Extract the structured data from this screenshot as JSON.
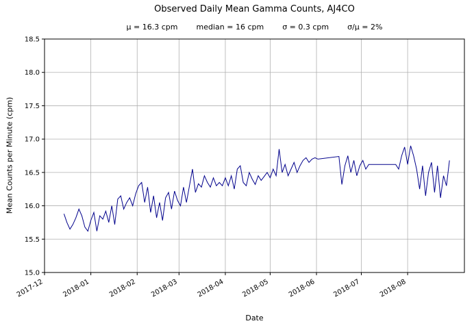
{
  "chart_data": {
    "type": "line",
    "title": "Observed Daily Mean Gamma Counts, AJ4CO",
    "stats": [
      "μ = 16.3 cpm",
      "median = 16 cpm",
      "σ = 0.3 cpm",
      "σ/μ = 2%"
    ],
    "xlabel": "Date",
    "ylabel": "Mean Counts per Minute (cpm)",
    "line_color": "#00008b",
    "grid": true,
    "legend": "none",
    "ylim": [
      15.0,
      18.5
    ],
    "xlim": [
      "2017-12-01",
      "2018-09-08"
    ],
    "yticks": [
      "15.0",
      "15.5",
      "16.0",
      "16.5",
      "17.0",
      "17.5",
      "18.0",
      "18.5"
    ],
    "xticks": [
      "2017-12",
      "2018-01",
      "2018-02",
      "2018-03",
      "2018-04",
      "2018-05",
      "2018-06",
      "2018-07",
      "2018-08"
    ],
    "x": [
      "2017-12-14",
      "2017-12-16",
      "2017-12-18",
      "2017-12-20",
      "2017-12-22",
      "2017-12-24",
      "2017-12-26",
      "2017-12-28",
      "2017-12-30",
      "2018-01-01",
      "2018-01-03",
      "2018-01-05",
      "2018-01-07",
      "2018-01-09",
      "2018-01-11",
      "2018-01-13",
      "2018-01-15",
      "2018-01-17",
      "2018-01-19",
      "2018-01-21",
      "2018-01-23",
      "2018-01-25",
      "2018-01-27",
      "2018-01-29",
      "2018-01-31",
      "2018-02-02",
      "2018-02-04",
      "2018-02-06",
      "2018-02-08",
      "2018-02-10",
      "2018-02-12",
      "2018-02-14",
      "2018-02-16",
      "2018-02-18",
      "2018-02-20",
      "2018-02-22",
      "2018-02-24",
      "2018-02-26",
      "2018-02-28",
      "2018-03-02",
      "2018-03-04",
      "2018-03-06",
      "2018-03-08",
      "2018-03-10",
      "2018-03-12",
      "2018-03-14",
      "2018-03-16",
      "2018-03-18",
      "2018-03-20",
      "2018-03-22",
      "2018-03-24",
      "2018-03-26",
      "2018-03-28",
      "2018-03-30",
      "2018-04-01",
      "2018-04-03",
      "2018-04-05",
      "2018-04-07",
      "2018-04-09",
      "2018-04-11",
      "2018-04-13",
      "2018-04-15",
      "2018-04-17",
      "2018-04-19",
      "2018-04-21",
      "2018-04-23",
      "2018-04-25",
      "2018-04-27",
      "2018-04-29",
      "2018-05-01",
      "2018-05-03",
      "2018-05-05",
      "2018-05-07",
      "2018-05-09",
      "2018-05-11",
      "2018-05-13",
      "2018-05-15",
      "2018-05-17",
      "2018-05-19",
      "2018-05-21",
      "2018-05-23",
      "2018-05-25",
      "2018-05-27",
      "2018-05-29",
      "2018-05-31",
      "2018-06-02",
      "2018-06-16",
      "2018-06-18",
      "2018-06-20",
      "2018-06-22",
      "2018-06-24",
      "2018-06-26",
      "2018-06-28",
      "2018-06-30",
      "2018-07-02",
      "2018-07-04",
      "2018-07-06",
      "2018-07-22",
      "2018-07-24",
      "2018-07-26",
      "2018-07-28",
      "2018-07-30",
      "2018-08-01",
      "2018-08-03",
      "2018-08-05",
      "2018-08-07",
      "2018-08-09",
      "2018-08-11",
      "2018-08-13",
      "2018-08-15",
      "2018-08-17",
      "2018-08-19",
      "2018-08-21",
      "2018-08-23",
      "2018-08-25",
      "2018-08-27",
      "2018-08-29"
    ],
    "y": [
      15.88,
      15.75,
      15.65,
      15.72,
      15.82,
      15.95,
      15.85,
      15.68,
      15.62,
      15.78,
      15.9,
      15.62,
      15.85,
      15.8,
      15.92,
      15.75,
      16.0,
      15.72,
      16.1,
      16.15,
      15.95,
      16.05,
      16.12,
      16.0,
      16.18,
      16.3,
      16.35,
      16.05,
      16.28,
      15.9,
      16.15,
      15.82,
      16.05,
      15.78,
      16.12,
      16.2,
      15.95,
      16.22,
      16.08,
      16.0,
      16.28,
      16.05,
      16.3,
      16.55,
      16.2,
      16.33,
      16.28,
      16.45,
      16.35,
      16.28,
      16.42,
      16.3,
      16.35,
      16.3,
      16.42,
      16.3,
      16.45,
      16.25,
      16.55,
      16.6,
      16.35,
      16.3,
      16.5,
      16.4,
      16.32,
      16.45,
      16.38,
      16.44,
      16.5,
      16.42,
      16.55,
      16.45,
      16.85,
      16.5,
      16.62,
      16.45,
      16.55,
      16.65,
      16.5,
      16.6,
      16.68,
      16.72,
      16.65,
      16.7,
      16.72,
      16.7,
      16.74,
      16.32,
      16.6,
      16.75,
      16.5,
      16.68,
      16.45,
      16.6,
      16.68,
      16.55,
      16.62,
      16.62,
      16.62,
      16.55,
      16.75,
      16.88,
      16.62,
      16.9,
      16.75,
      16.55,
      16.25,
      16.6,
      16.15,
      16.5,
      16.65,
      16.2,
      16.6,
      16.12,
      16.45,
      16.3,
      16.68
    ]
  }
}
